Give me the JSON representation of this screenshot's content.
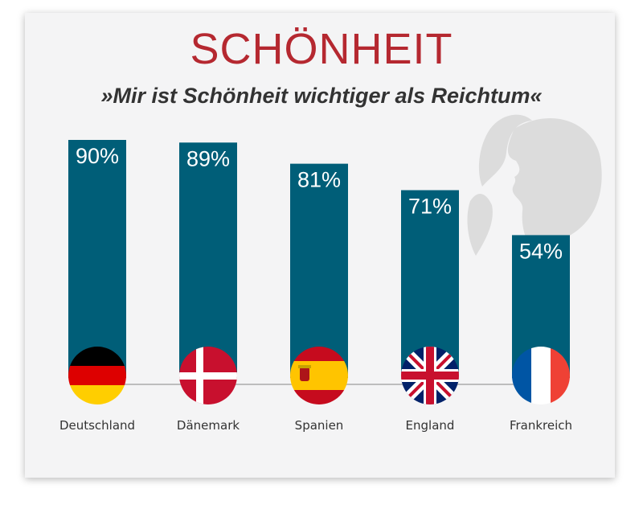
{
  "title": "SCHÖNHEIT",
  "subtitle": "»Mir ist Schönheit wichtiger als Reichtum«",
  "colors": {
    "bar": "#005e78",
    "title": "#b52830",
    "background": "#f4f4f5"
  },
  "chart_data": {
    "type": "bar",
    "title": "SCHÖNHEIT",
    "subtitle": "»Mir ist Schönheit wichtiger als Reichtum«",
    "categories": [
      "Deutschland",
      "Dänemark",
      "Spanien",
      "England",
      "Frankreich"
    ],
    "values": [
      90,
      89,
      81,
      71,
      54
    ],
    "value_labels": [
      "90%",
      "89%",
      "81%",
      "71%",
      "54%"
    ],
    "flags": [
      "germany-flag-icon",
      "denmark-flag-icon",
      "spain-flag-icon",
      "uk-flag-icon",
      "france-flag-icon"
    ],
    "ylim": [
      0,
      100
    ],
    "grid": false,
    "legend": "none"
  }
}
